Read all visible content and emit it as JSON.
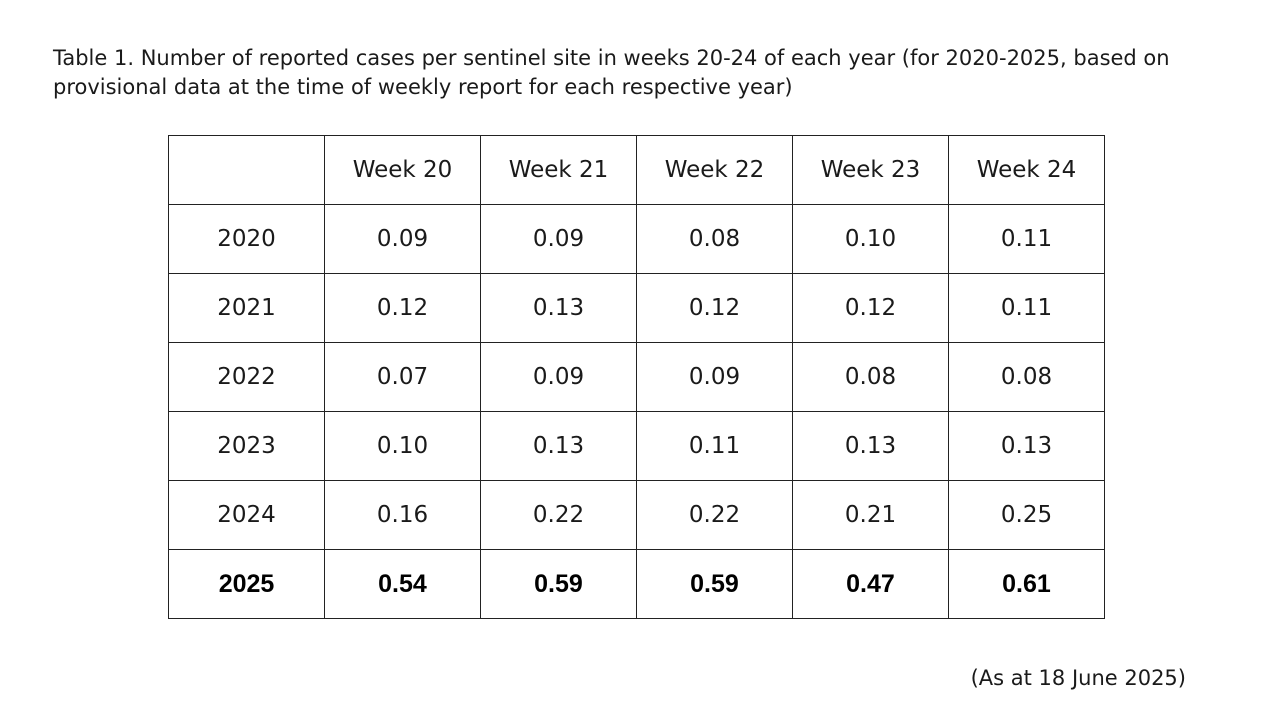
{
  "caption": "Table 1. Number of reported cases per sentinel site in weeks 20-24 of each year (for 2020-2025, based on provisional data at the time of weekly report for each respective year)",
  "table": {
    "corner": "",
    "columns": [
      "Week 20",
      "Week 21",
      "Week 22",
      "Week 23",
      "Week 24"
    ],
    "rows": [
      {
        "year": "2020",
        "values": [
          "0.09",
          "0.09",
          "0.08",
          "0.10",
          "0.11"
        ]
      },
      {
        "year": "2021",
        "values": [
          "0.12",
          "0.13",
          "0.12",
          "0.12",
          "0.11"
        ]
      },
      {
        "year": "2022",
        "values": [
          "0.07",
          "0.09",
          "0.09",
          "0.08",
          "0.08"
        ]
      },
      {
        "year": "2023",
        "values": [
          "0.10",
          "0.13",
          "0.11",
          "0.13",
          "0.13"
        ]
      },
      {
        "year": "2024",
        "values": [
          "0.16",
          "0.22",
          "0.22",
          "0.21",
          "0.25"
        ]
      },
      {
        "year": "2025",
        "values": [
          "0.54",
          "0.59",
          "0.59",
          "0.47",
          "0.61"
        ]
      }
    ]
  },
  "note": "(As at 18 June 2025)"
}
